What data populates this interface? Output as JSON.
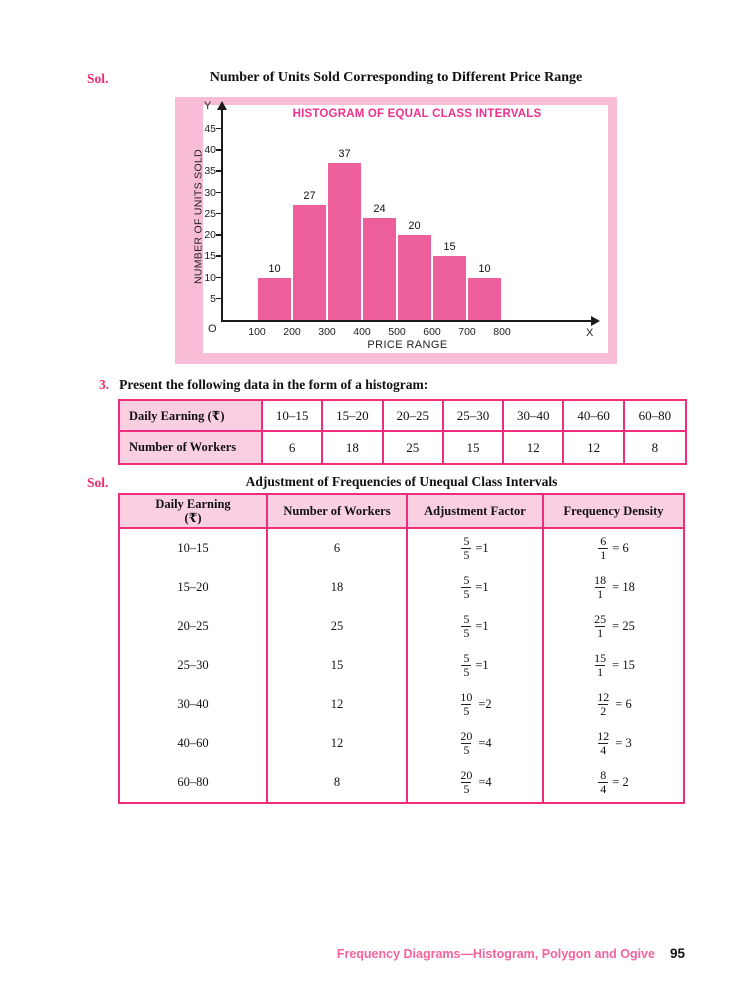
{
  "page": {
    "sol1": "Sol.",
    "sol2": "Sol.",
    "footer_chapter": "Frequency Diagrams—Histogram, Polygon and Ogive",
    "footer_page": "95"
  },
  "chart_data": {
    "type": "bar",
    "title": "Number of Units Sold Corresponding to Different Price Range",
    "inner_title": "HISTOGRAM OF EQUAL CLASS INTERVALS",
    "xlabel": "PRICE RANGE",
    "ylabel": "NUMBER OF UNITS SOLD",
    "axis_letters": {
      "x": "X",
      "y": "Y",
      "origin": "O"
    },
    "categories": [
      "100–200",
      "200–300",
      "300–400",
      "400–500",
      "500–600",
      "600–700",
      "700–800"
    ],
    "values": [
      10,
      27,
      37,
      24,
      20,
      15,
      10
    ],
    "x_ticks": [
      100,
      200,
      300,
      400,
      500,
      600,
      700,
      800
    ],
    "y_ticks": [
      5,
      10,
      15,
      20,
      25,
      30,
      35,
      40,
      45
    ],
    "ylim": [
      0,
      48
    ],
    "grid": false,
    "legend": false,
    "colors": {
      "bar": "#ec5f9b",
      "panel_bg": "#f8bcd7",
      "inner_title": "#f1308e",
      "axis": "#1a1a1a"
    }
  },
  "question": {
    "number": "3.",
    "text": "Present the following data in the form of a histogram:",
    "table": {
      "row1_header": "Daily Earning (₹)",
      "row1_values": [
        "10–15",
        "15–20",
        "20–25",
        "25–30",
        "30–40",
        "40–60",
        "60–80"
      ],
      "row2_header": "Number of Workers",
      "row2_values": [
        "6",
        "18",
        "25",
        "15",
        "12",
        "12",
        "8"
      ]
    }
  },
  "solution": {
    "title": "Adjustment of Frequencies of Unequal Class Intervals",
    "table": {
      "headers": [
        "Daily Earning\n(₹)",
        "Number of Workers",
        "Adjustment Factor",
        "Frequency Density"
      ],
      "rows": [
        {
          "interval": "10–15",
          "workers": "6",
          "adj_num": "5",
          "adj_den": "5",
          "adj_res": "=1",
          "fd_num": "6",
          "fd_den": "1",
          "fd_res": "= 6"
        },
        {
          "interval": "15–20",
          "workers": "18",
          "adj_num": "5",
          "adj_den": "5",
          "adj_res": "=1",
          "fd_num": "18",
          "fd_den": "1",
          "fd_res": "= 18"
        },
        {
          "interval": "20–25",
          "workers": "25",
          "adj_num": "5",
          "adj_den": "5",
          "adj_res": "=1",
          "fd_num": "25",
          "fd_den": "1",
          "fd_res": "= 25"
        },
        {
          "interval": "25–30",
          "workers": "15",
          "adj_num": "5",
          "adj_den": "5",
          "adj_res": "=1",
          "fd_num": "15",
          "fd_den": "1",
          "fd_res": "= 15"
        },
        {
          "interval": "30–40",
          "workers": "12",
          "adj_num": "10",
          "adj_den": "5",
          "adj_res": "=2",
          "fd_num": "12",
          "fd_den": "2",
          "fd_res": "= 6"
        },
        {
          "interval": "40–60",
          "workers": "12",
          "adj_num": "20",
          "adj_den": "5",
          "adj_res": "=4",
          "fd_num": "12",
          "fd_den": "4",
          "fd_res": "= 3"
        },
        {
          "interval": "60–80",
          "workers": "8",
          "adj_num": "20",
          "adj_den": "5",
          "adj_res": "=4",
          "fd_num": "8",
          "fd_den": "4",
          "fd_res": "= 2"
        }
      ]
    }
  }
}
